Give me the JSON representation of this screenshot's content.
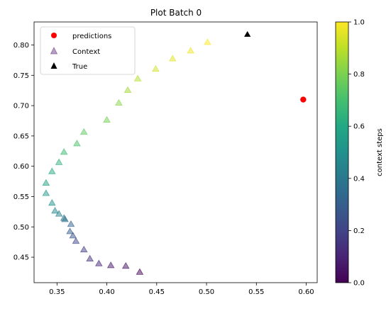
{
  "chart_data": {
    "type": "scatter",
    "title": "Plot Batch 0",
    "xlabel": "",
    "ylabel": "",
    "xlim": [
      0.327,
      0.611
    ],
    "ylim": [
      0.408,
      0.838
    ],
    "x_ticks": [
      "0.35",
      "0.40",
      "0.45",
      "0.50",
      "0.55",
      "0.60"
    ],
    "x_tick_values": [
      0.35,
      0.4,
      0.45,
      0.5,
      0.55,
      0.6
    ],
    "y_ticks": [
      "0.45",
      "0.50",
      "0.55",
      "0.60",
      "0.65",
      "0.70",
      "0.75",
      "0.80"
    ],
    "y_tick_values": [
      0.45,
      0.5,
      0.55,
      0.6,
      0.65,
      0.7,
      0.75,
      0.8
    ],
    "legend": {
      "placement": "top-left",
      "entries": [
        "predictions",
        "Context",
        "True"
      ]
    },
    "series": [
      {
        "name": "predictions",
        "marker": "circle",
        "color": "#ff0000",
        "points": [
          [
            0.597,
            0.71
          ]
        ]
      },
      {
        "name": "Context",
        "marker": "triangle",
        "colormap": "viridis",
        "alpha": 0.5,
        "points": [
          [
            0.433,
            0.426,
            0.0
          ],
          [
            0.419,
            0.436,
            0.04
          ],
          [
            0.404,
            0.437,
            0.07
          ],
          [
            0.392,
            0.44,
            0.11
          ],
          [
            0.383,
            0.448,
            0.14
          ],
          [
            0.377,
            0.463,
            0.18
          ],
          [
            0.369,
            0.477,
            0.21
          ],
          [
            0.366,
            0.486,
            0.25
          ],
          [
            0.363,
            0.493,
            0.29
          ],
          [
            0.364,
            0.505,
            0.32
          ],
          [
            0.358,
            0.513,
            0.36
          ],
          [
            0.357,
            0.515,
            0.39
          ],
          [
            0.352,
            0.522,
            0.43
          ],
          [
            0.348,
            0.527,
            0.46
          ],
          [
            0.345,
            0.54,
            0.5
          ],
          [
            0.339,
            0.556,
            0.54
          ],
          [
            0.339,
            0.573,
            0.57
          ],
          [
            0.345,
            0.592,
            0.61
          ],
          [
            0.352,
            0.607,
            0.64
          ],
          [
            0.357,
            0.624,
            0.68
          ],
          [
            0.37,
            0.638,
            0.71
          ],
          [
            0.377,
            0.657,
            0.75
          ],
          [
            0.4,
            0.677,
            0.79
          ],
          [
            0.412,
            0.705,
            0.82
          ],
          [
            0.421,
            0.726,
            0.86
          ],
          [
            0.431,
            0.745,
            0.89
          ],
          [
            0.449,
            0.761,
            0.93
          ],
          [
            0.466,
            0.778,
            0.96
          ],
          [
            0.484,
            0.791,
            0.98
          ],
          [
            0.501,
            0.805,
            1.0
          ]
        ]
      },
      {
        "name": "True",
        "marker": "triangle",
        "color": "#000000",
        "points": [
          [
            0.541,
            0.818
          ]
        ]
      }
    ],
    "colorbar": {
      "label": "context steps",
      "colormap": "viridis",
      "range": [
        0.0,
        1.0
      ],
      "ticks": [
        "0.0",
        "0.2",
        "0.4",
        "0.6",
        "0.8",
        "1.0"
      ],
      "tick_values": [
        0.0,
        0.2,
        0.4,
        0.6,
        0.8,
        1.0
      ]
    },
    "grid": false
  }
}
